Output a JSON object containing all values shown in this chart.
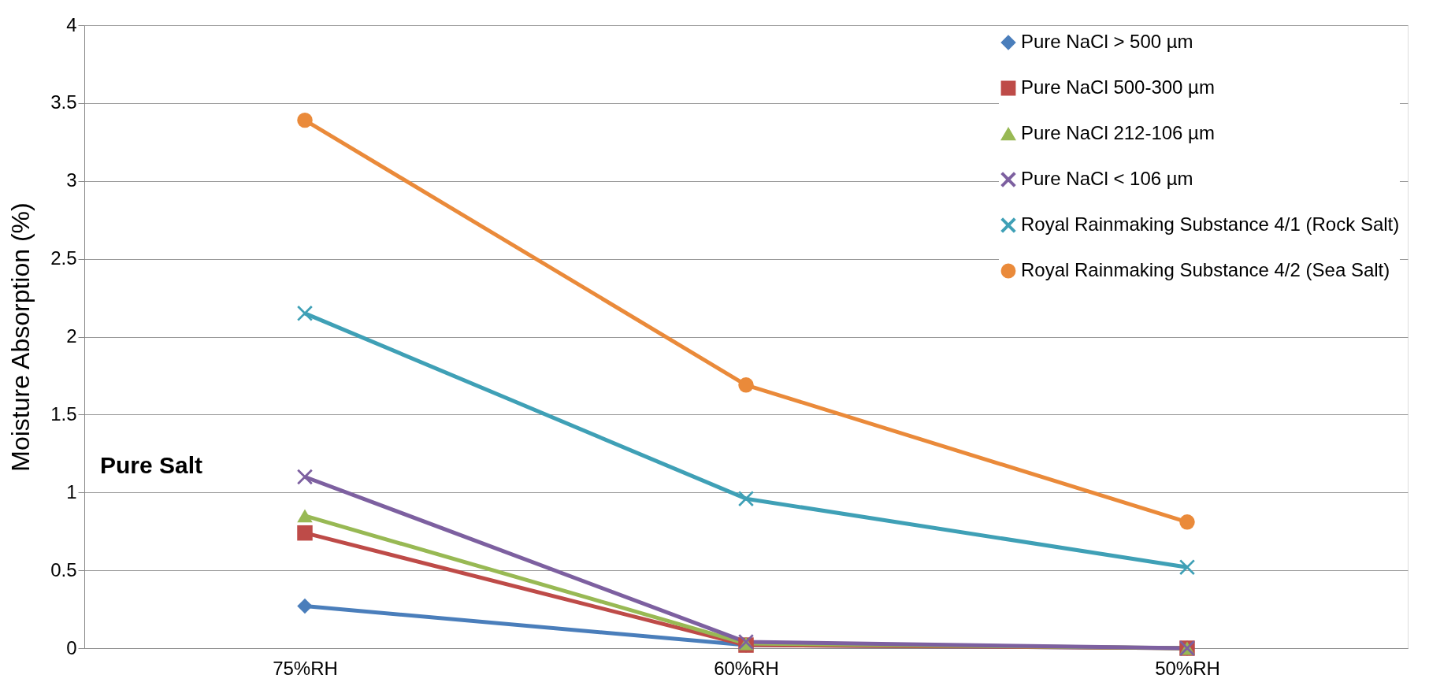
{
  "chart_data": {
    "type": "line",
    "ylabel": "Moisture Absorption (%)",
    "categories": [
      "75%RH",
      "60%RH",
      "50%RH"
    ],
    "ylim": [
      0,
      4
    ],
    "yticks": [
      0,
      0.5,
      1,
      1.5,
      2,
      2.5,
      3,
      3.5,
      4
    ],
    "grid": "y",
    "legend": "top right",
    "series": [
      {
        "name": "Pure NaCl > 500 µm",
        "color": "#4a7ebb",
        "marker": "diamond",
        "values": [
          0.27,
          0.02,
          0
        ]
      },
      {
        "name": "Pure NaCl 500-300 µm",
        "color": "#be4b48",
        "marker": "square",
        "values": [
          0.74,
          0.02,
          0
        ]
      },
      {
        "name": "Pure NaCl 212-106 µm",
        "color": "#98b954",
        "marker": "triangle",
        "values": [
          0.85,
          0.03,
          0
        ]
      },
      {
        "name": "Pure NaCl < 106  µm",
        "color": "#7d60a0",
        "marker": "cross",
        "values": [
          1.1,
          0.04,
          0
        ]
      },
      {
        "name": "Royal Rainmaking Substance 4/1 (Rock Salt)",
        "color": "#3fa0b6",
        "marker": "cross",
        "values": [
          2.15,
          0.96,
          0.52
        ]
      },
      {
        "name": "Royal Rainmaking Substance 4/2 (Sea Salt)",
        "color": "#ea8a3a",
        "marker": "circle",
        "values": [
          3.39,
          1.69,
          0.81
        ]
      }
    ],
    "annotations": [
      "Pure Salt"
    ]
  }
}
